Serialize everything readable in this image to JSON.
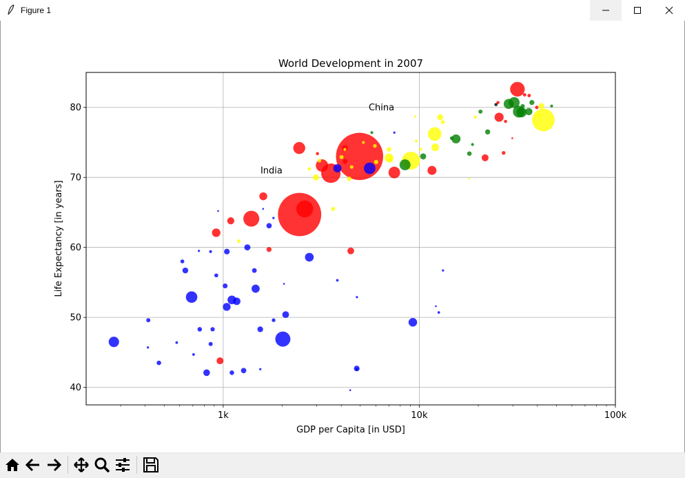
{
  "window": {
    "title": "Figure 1",
    "icons": {
      "app": "feather-icon",
      "minimize": "minimize-icon",
      "maximize": "maximize-icon",
      "close": "close-icon"
    }
  },
  "toolbar": {
    "buttons": [
      {
        "name": "home-button",
        "icon": "home-icon"
      },
      {
        "name": "back-button",
        "icon": "arrow-left-icon"
      },
      {
        "name": "forward-button",
        "icon": "arrow-right-icon"
      },
      {
        "name": "pan-button",
        "icon": "move-icon"
      },
      {
        "name": "zoom-button",
        "icon": "magnifier-icon"
      },
      {
        "name": "configure-subplots-button",
        "icon": "sliders-icon"
      },
      {
        "name": "save-button",
        "icon": "floppy-disk-icon"
      }
    ]
  },
  "chart_data": {
    "type": "scatter",
    "title": "World Development in 2007",
    "xlabel": "GDP per Capita [in USD]",
    "ylabel": "Life Expectancy [in years]",
    "xscale": "log",
    "xlim": [
      200,
      100000
    ],
    "ylim": [
      37.5,
      85
    ],
    "xticks": [
      {
        "value": 1000,
        "label": "1k"
      },
      {
        "value": 10000,
        "label": "10k"
      },
      {
        "value": 100000,
        "label": "100k"
      }
    ],
    "yticks": [
      40,
      50,
      60,
      70,
      80
    ],
    "grid": true,
    "annotations": [
      {
        "text": "India",
        "x": 1600,
        "y": 71
      },
      {
        "text": "China",
        "x": 5700,
        "y": 80
      }
    ],
    "colors": {
      "asia": "#ff0000",
      "africa": "#0000ff",
      "europe": "#008000",
      "americas": "#ffff00",
      "oceania": "#000000"
    },
    "points": [
      {
        "x": 4959,
        "y": 73.0,
        "size": 1318,
        "color": "red"
      },
      {
        "x": 2452,
        "y": 64.7,
        "size": 1110,
        "color": "red"
      },
      {
        "x": 42952,
        "y": 78.2,
        "size": 301,
        "color": "yellow"
      },
      {
        "x": 3541,
        "y": 70.6,
        "size": 223,
        "color": "red"
      },
      {
        "x": 2605,
        "y": 65.5,
        "size": 169,
        "color": "red"
      },
      {
        "x": 1391,
        "y": 64.1,
        "size": 150,
        "color": "red"
      },
      {
        "x": 2014,
        "y": 46.9,
        "size": 135,
        "color": "blue"
      },
      {
        "x": 31656,
        "y": 82.6,
        "size": 127,
        "color": "red"
      },
      {
        "x": 9066,
        "y": 72.4,
        "size": 190,
        "color": "yellow"
      },
      {
        "x": 11977,
        "y": 76.2,
        "size": 109,
        "color": "yellow"
      },
      {
        "x": 3190,
        "y": 71.7,
        "size": 91,
        "color": "red"
      },
      {
        "x": 2442,
        "y": 74.2,
        "size": 85,
        "color": "red"
      },
      {
        "x": 7458,
        "y": 70.7,
        "size": 80,
        "color": "red"
      },
      {
        "x": 32170,
        "y": 79.4,
        "size": 82,
        "color": "green"
      },
      {
        "x": 690,
        "y": 52.9,
        "size": 78,
        "color": "blue"
      },
      {
        "x": 5581,
        "y": 71.3,
        "size": 79,
        "color": "blue"
      },
      {
        "x": 8458,
        "y": 71.8,
        "size": 71,
        "color": "green"
      },
      {
        "x": 30470,
        "y": 80.7,
        "size": 70,
        "color": "green"
      },
      {
        "x": 33203,
        "y": 79.3,
        "size": 60,
        "color": "green"
      },
      {
        "x": 277,
        "y": 46.5,
        "size": 64,
        "color": "blue"
      },
      {
        "x": 28570,
        "y": 80.5,
        "size": 59,
        "color": "green"
      },
      {
        "x": 11605,
        "y": 71.0,
        "size": 48,
        "color": "red"
      },
      {
        "x": 15390,
        "y": 75.5,
        "size": 48,
        "color": "green"
      },
      {
        "x": 1107,
        "y": 52.5,
        "size": 45,
        "color": "blue"
      },
      {
        "x": 2749,
        "y": 58.6,
        "size": 45,
        "color": "blue"
      },
      {
        "x": 9269,
        "y": 49.3,
        "size": 44,
        "color": "blue"
      },
      {
        "x": 3822,
        "y": 71.3,
        "size": 40,
        "color": "blue"
      },
      {
        "x": 1463,
        "y": 54.1,
        "size": 39,
        "color": "blue"
      },
      {
        "x": 25523,
        "y": 78.6,
        "size": 49,
        "color": "red"
      },
      {
        "x": 921,
        "y": 62.1,
        "size": 43,
        "color": "red"
      },
      {
        "x": 1172,
        "y": 52.3,
        "size": 33,
        "color": "blue"
      },
      {
        "x": 12057,
        "y": 74.3,
        "size": 34,
        "color": "yellow"
      },
      {
        "x": 1601,
        "y": 67.3,
        "size": 37,
        "color": "red"
      },
      {
        "x": 7006,
        "y": 72.8,
        "size": 45,
        "color": "yellow"
      },
      {
        "x": 2082,
        "y": 50.4,
        "size": 27,
        "color": "blue"
      },
      {
        "x": 4471,
        "y": 59.5,
        "size": 27,
        "color": "red"
      },
      {
        "x": 1042,
        "y": 51.5,
        "size": 36,
        "color": "blue"
      },
      {
        "x": 1093,
        "y": 63.8,
        "size": 30,
        "color": "red"
      },
      {
        "x": 963,
        "y": 43.8,
        "size": 28,
        "color": "red"
      },
      {
        "x": 21655,
        "y": 72.8,
        "size": 28,
        "color": "red"
      },
      {
        "x": 36181,
        "y": 79.4,
        "size": 31,
        "color": "green"
      },
      {
        "x": 2970,
        "y": 70.0,
        "size": 22,
        "color": "yellow"
      },
      {
        "x": 10461,
        "y": 73.0,
        "size": 22,
        "color": "green"
      },
      {
        "x": 1328,
        "y": 60.0,
        "size": 22,
        "color": "blue"
      },
      {
        "x": 4797,
        "y": 42.7,
        "size": 19,
        "color": "blue"
      },
      {
        "x": 1044,
        "y": 59.4,
        "size": 19,
        "color": "blue"
      },
      {
        "x": 1545,
        "y": 48.3,
        "size": 19,
        "color": "blue"
      },
      {
        "x": 641,
        "y": 56.7,
        "size": 20,
        "color": "blue"
      },
      {
        "x": 1271,
        "y": 42.4,
        "size": 17,
        "color": "blue"
      },
      {
        "x": 12779,
        "y": 78.6,
        "size": 21,
        "color": "yellow"
      },
      {
        "x": 823,
        "y": 42.1,
        "size": 26,
        "color": "blue"
      },
      {
        "x": 41973,
        "y": 80.2,
        "size": 20,
        "color": "yellow"
      },
      {
        "x": 1714,
        "y": 63.1,
        "size": 17,
        "color": "blue"
      },
      {
        "x": 4173,
        "y": 74.2,
        "size": 20,
        "color": "red"
      },
      {
        "x": 22316,
        "y": 76.5,
        "size": 16,
        "color": "green"
      },
      {
        "x": 7093,
        "y": 72.5,
        "size": 16,
        "color": "yellow"
      },
      {
        "x": 4184,
        "y": 72.3,
        "size": 14,
        "color": "red"
      },
      {
        "x": 1713,
        "y": 59.7,
        "size": 15,
        "color": "red"
      },
      {
        "x": 1023,
        "y": 54.5,
        "size": 14,
        "color": "blue"
      },
      {
        "x": 1442,
        "y": 56.7,
        "size": 13,
        "color": "blue"
      },
      {
        "x": 4391,
        "y": 69.8,
        "size": 12,
        "color": "yellow"
      },
      {
        "x": 37506,
        "y": 80.7,
        "size": 15,
        "color": "green"
      },
      {
        "x": 18008,
        "y": 73.4,
        "size": 12,
        "color": "green"
      },
      {
        "x": 7007,
        "y": 74.0,
        "size": 12,
        "color": "yellow"
      },
      {
        "x": 470,
        "y": 43.5,
        "size": 12,
        "color": "blue"
      },
      {
        "x": 1107,
        "y": 42.1,
        "size": 12,
        "color": "blue"
      },
      {
        "x": 883,
        "y": 48.3,
        "size": 11,
        "color": "blue"
      },
      {
        "x": 6025,
        "y": 72.2,
        "size": 11,
        "color": "yellow"
      },
      {
        "x": 759,
        "y": 48.3,
        "size": 12,
        "color": "blue"
      },
      {
        "x": 863,
        "y": 46.2,
        "size": 10,
        "color": "blue"
      },
      {
        "x": 415,
        "y": 49.6,
        "size": 10,
        "color": "blue"
      },
      {
        "x": 20510,
        "y": 79.4,
        "size": 10,
        "color": "green"
      },
      {
        "x": 4014,
        "y": 72.9,
        "size": 10,
        "color": "yellow"
      },
      {
        "x": 33692,
        "y": 80.2,
        "size": 9,
        "color": "green"
      },
      {
        "x": 922,
        "y": 56.0,
        "size": 9,
        "color": "blue"
      },
      {
        "x": 619,
        "y": 58.0,
        "size": 9,
        "color": "blue"
      },
      {
        "x": 1807,
        "y": 49.6,
        "size": 8,
        "color": "blue"
      },
      {
        "x": 3095,
        "y": 72.4,
        "size": 8,
        "color": "yellow"
      },
      {
        "x": 5937,
        "y": 74.5,
        "size": 8,
        "color": "yellow"
      },
      {
        "x": 4520,
        "y": 71.5,
        "size": 8,
        "color": "yellow"
      },
      {
        "x": 26906,
        "y": 73.5,
        "size": 8,
        "color": "red"
      },
      {
        "x": 3632,
        "y": 65.5,
        "size": 10,
        "color": "yellow"
      },
      {
        "x": 40676,
        "y": 78.9,
        "size": 7,
        "color": "yellow"
      },
      {
        "x": 14619,
        "y": 75.6,
        "size": 7,
        "color": "green"
      },
      {
        "x": 13171,
        "y": 77.9,
        "size": 9,
        "color": "yellow"
      },
      {
        "x": 2749,
        "y": 71.2,
        "size": 7,
        "color": "yellow"
      },
      {
        "x": 36319,
        "y": 81.7,
        "size": 7,
        "color": "red"
      },
      {
        "x": 39725,
        "y": 80.0,
        "size": 7,
        "color": "red"
      },
      {
        "x": 34435,
        "y": 81.8,
        "size": 7,
        "color": "red"
      },
      {
        "x": 1201,
        "y": 60.9,
        "size": 7,
        "color": "yellow"
      },
      {
        "x": 25185,
        "y": 80.7,
        "size": 6,
        "color": "red"
      },
      {
        "x": 27538,
        "y": 78.0,
        "size": 6,
        "color": "red"
      },
      {
        "x": 24600,
        "y": 80.4,
        "size": 6,
        "color": "black"
      },
      {
        "x": 3025,
        "y": 73.4,
        "size": 6,
        "color": "red"
      },
      {
        "x": 19329,
        "y": 78.6,
        "size": 6,
        "color": "yellow"
      },
      {
        "x": 10150,
        "y": 74.0,
        "size": 6,
        "color": "yellow"
      },
      {
        "x": 862,
        "y": 59.4,
        "size": 5,
        "color": "blue"
      },
      {
        "x": 5186,
        "y": 75.0,
        "size": 5,
        "color": "yellow"
      },
      {
        "x": 9645,
        "y": 75.2,
        "size": 5,
        "color": "yellow"
      },
      {
        "x": 4172,
        "y": 74.0,
        "size": 5,
        "color": "yellow"
      },
      {
        "x": 47306,
        "y": 80.2,
        "size": 5,
        "color": "green"
      },
      {
        "x": 5728,
        "y": 76.4,
        "size": 5,
        "color": "green"
      },
      {
        "x": 18678,
        "y": 74.7,
        "size": 5,
        "color": "green"
      },
      {
        "x": 4797,
        "y": 42.6,
        "size": 4,
        "color": "blue"
      },
      {
        "x": 3820,
        "y": 55.3,
        "size": 4,
        "color": "blue"
      },
      {
        "x": 12570,
        "y": 50.7,
        "size": 4,
        "color": "blue"
      },
      {
        "x": 579,
        "y": 46.4,
        "size": 4,
        "color": "blue"
      },
      {
        "x": 706,
        "y": 44.7,
        "size": 4,
        "color": "blue"
      },
      {
        "x": 1546,
        "y": 42.6,
        "size": 3,
        "color": "blue"
      },
      {
        "x": 413,
        "y": 45.7,
        "size": 3,
        "color": "blue"
      },
      {
        "x": 13206,
        "y": 56.7,
        "size": 3,
        "color": "blue"
      },
      {
        "x": 752,
        "y": 59.5,
        "size": 3,
        "color": "blue"
      },
      {
        "x": 4807,
        "y": 52.9,
        "size": 3,
        "color": "blue"
      },
      {
        "x": 7458,
        "y": 76.4,
        "size": 3,
        "color": "blue"
      },
      {
        "x": 1804,
        "y": 64.2,
        "size": 3,
        "color": "blue"
      },
      {
        "x": 9534,
        "y": 78.7,
        "size": 3,
        "color": "yellow"
      },
      {
        "x": 4443,
        "y": 39.6,
        "size": 2,
        "color": "blue"
      },
      {
        "x": 12154,
        "y": 51.6,
        "size": 2,
        "color": "blue"
      },
      {
        "x": 2042,
        "y": 54.8,
        "size": 2,
        "color": "blue"
      },
      {
        "x": 1598,
        "y": 65.5,
        "size": 2,
        "color": "blue"
      },
      {
        "x": 942,
        "y": 65.2,
        "size": 2,
        "color": "blue"
      },
      {
        "x": 29796,
        "y": 75.6,
        "size": 2,
        "color": "red"
      },
      {
        "x": 18009,
        "y": 69.8,
        "size": 2,
        "color": "yellow"
      }
    ]
  }
}
